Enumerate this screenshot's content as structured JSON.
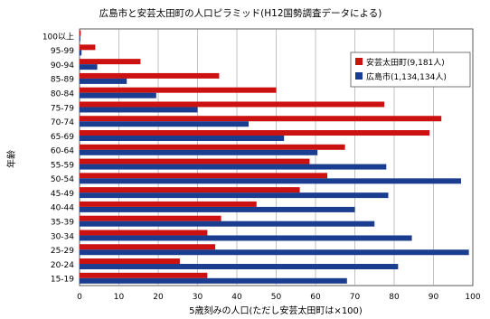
{
  "chart_data": {
    "type": "bar",
    "orientation": "horizontal",
    "title": "広島市と安芸太田町の人口ピラミッド(H12国勢調査データによる)",
    "xlabel": "5歳刻みの人口(ただし安芸太田町は×100)",
    "ylabel": "年齢",
    "xlim": [
      0,
      100
    ],
    "xticks": [
      0,
      10,
      20,
      30,
      40,
      50,
      60,
      70,
      80,
      90,
      100
    ],
    "grid": true,
    "legend_position": "top-right",
    "categories": [
      "100以上",
      "95-99",
      "90-94",
      "85-89",
      "80-84",
      "75-79",
      "70-74",
      "65-69",
      "60-64",
      "55-59",
      "50-54",
      "45-49",
      "40-44",
      "35-39",
      "30-34",
      "25-29",
      "20-24",
      "15-19"
    ],
    "series": [
      {
        "name": "安芸太田町(9,181人)",
        "color": "#cc1111",
        "values": [
          0.3,
          4,
          15.5,
          35.5,
          50,
          77.5,
          92,
          89,
          67.5,
          58.5,
          63,
          56,
          45,
          36,
          32.5,
          34.5,
          25.5,
          32.5
        ]
      },
      {
        "name": "広島市(1,134,134人)",
        "color": "#1a3d8f",
        "values": [
          0.2,
          0.5,
          4.5,
          12,
          19.5,
          30,
          43,
          52,
          60.5,
          78,
          97,
          78.5,
          70,
          75,
          84.5,
          99,
          81,
          68
        ]
      }
    ]
  }
}
